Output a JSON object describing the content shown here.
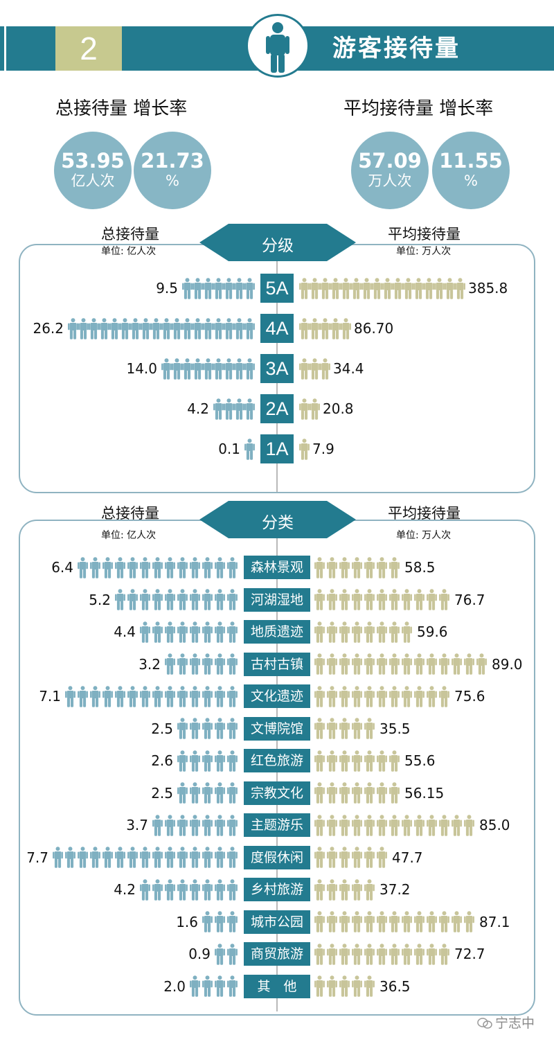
{
  "header": {
    "number": "2",
    "title": "游客接待量",
    "person_icon": "person-icon"
  },
  "summary": {
    "left_heading": "总接待量  增长率",
    "right_heading": "平均接待量  增长率",
    "stats": [
      {
        "value": "53.95",
        "unit": "亿人次"
      },
      {
        "value": "21.73",
        "unit": "%"
      },
      {
        "value": "57.09",
        "unit": "万人次"
      },
      {
        "value": "11.55",
        "unit": "%"
      }
    ]
  },
  "colors": {
    "accent": "#237b8f",
    "left_icon": "#7fb0c1",
    "right_icon": "#c8c59a",
    "circle": "#87b6c5",
    "badge": "#c7c98f"
  },
  "watermark": "宁志中",
  "chart_data": [
    {
      "type": "bar",
      "title": "分级",
      "left_label": "总接待量",
      "left_unit": "单位: 亿人次",
      "right_label": "平均接待量",
      "right_unit": "单位: 万人次",
      "categories": [
        "5A",
        "4A",
        "3A",
        "2A",
        "1A"
      ],
      "series": [
        {
          "name": "总接待量",
          "values": [
            9.5,
            26.2,
            14.0,
            4.2,
            0.1
          ],
          "labels": [
            "9.5",
            "26.2",
            "14.0",
            "4.2",
            "0.1"
          ],
          "icon_counts": [
            7,
            18,
            9,
            4,
            1
          ]
        },
        {
          "name": "平均接待量",
          "values": [
            385.8,
            86.7,
            34.4,
            20.8,
            7.9
          ],
          "labels": [
            "385.8",
            "86.70",
            "34.4",
            "20.8",
            "7.9"
          ],
          "icon_counts": [
            16,
            5,
            3,
            2,
            1
          ]
        }
      ]
    },
    {
      "type": "bar",
      "title": "分类",
      "left_label": "总接待量",
      "left_unit": "单位: 亿人次",
      "right_label": "平均接待量",
      "right_unit": "单位: 万人次",
      "categories": [
        "森林景观",
        "河湖湿地",
        "地质遗迹",
        "古村古镇",
        "文化遗迹",
        "文博院馆",
        "红色旅游",
        "宗教文化",
        "主题游乐",
        "度假休闲",
        "乡村旅游",
        "城市公园",
        "商贸旅游",
        "其　他"
      ],
      "series": [
        {
          "name": "总接待量",
          "values": [
            6.4,
            5.2,
            4.4,
            3.2,
            7.1,
            2.5,
            2.6,
            2.5,
            3.7,
            7.7,
            4.2,
            1.6,
            0.9,
            2.0
          ],
          "labels": [
            "6.4",
            "5.2",
            "4.4",
            "3.2",
            "7.1",
            "2.5",
            "2.6",
            "2.5",
            "3.7",
            "7.7",
            "4.2",
            "1.6",
            "0.9",
            "2.0"
          ],
          "icon_counts": [
            13,
            10,
            8,
            6,
            14,
            5,
            5,
            5,
            7,
            15,
            8,
            3,
            2,
            4
          ]
        },
        {
          "name": "平均接待量",
          "values": [
            58.5,
            76.7,
            59.6,
            89.0,
            75.6,
            35.5,
            55.6,
            56.15,
            85.0,
            47.7,
            37.2,
            87.1,
            72.7,
            36.5
          ],
          "labels": [
            "58.5",
            "76.7",
            "59.6",
            "89.0",
            "75.6",
            "35.5",
            "55.6",
            "56.15",
            "85.0",
            "47.7",
            "37.2",
            "87.1",
            "72.7",
            "36.5"
          ],
          "icon_counts": [
            7,
            11,
            8,
            14,
            11,
            5,
            7,
            7,
            13,
            6,
            5,
            13,
            11,
            5
          ]
        }
      ]
    }
  ]
}
